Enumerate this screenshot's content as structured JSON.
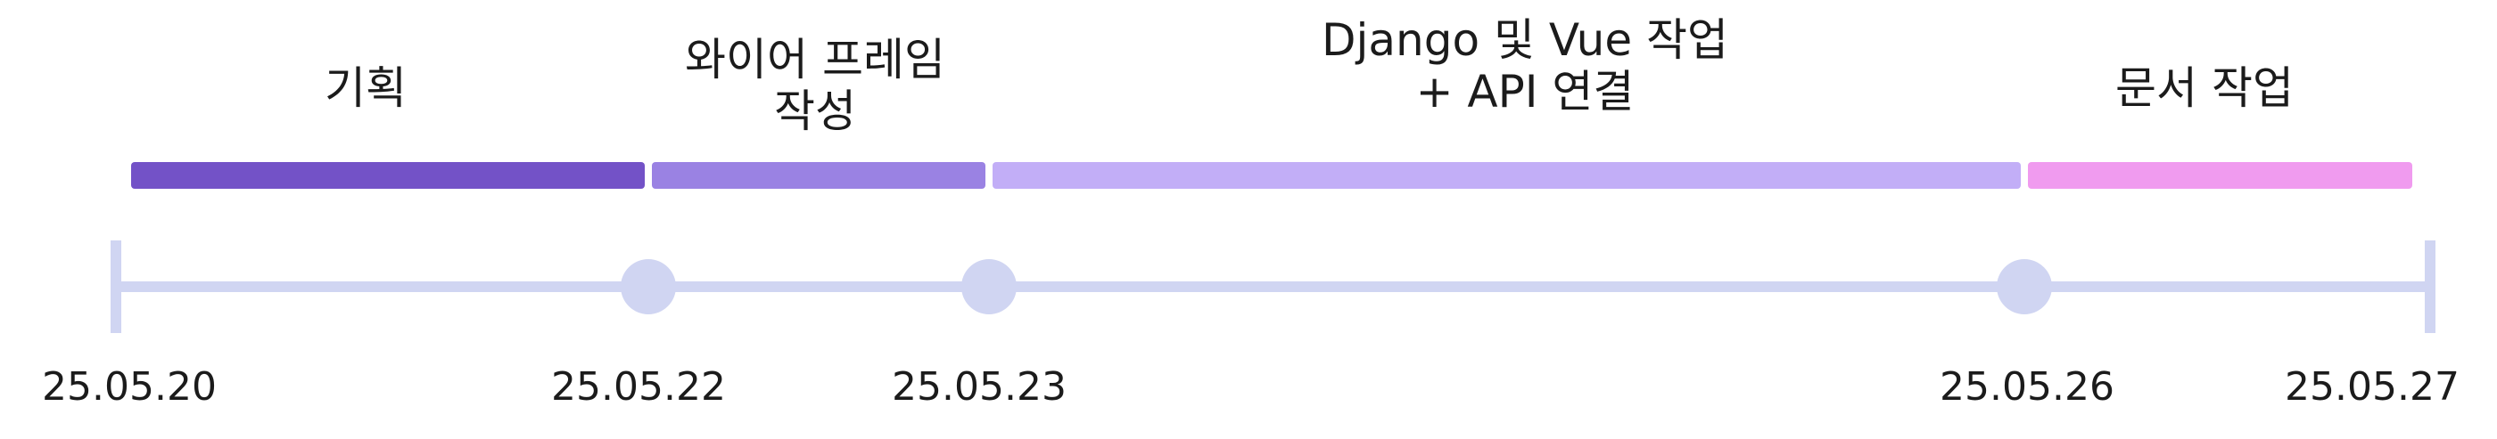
{
  "timeline": {
    "dates": [
      "25.05.20",
      "25.05.22",
      "25.05.23",
      "25.05.26",
      "25.05.27"
    ],
    "phases": [
      {
        "label": "기획",
        "start_index": 0,
        "end_index": 1,
        "color": "#7352c7"
      },
      {
        "label": "와이어 프레임\n작성",
        "start_index": 1,
        "end_index": 2,
        "color": "#9a82e3"
      },
      {
        "label": "Django 및 Vue 작업\n+ API 연결",
        "start_index": 2,
        "end_index": 3,
        "color": "#c2aef7"
      },
      {
        "label": "문서 작업",
        "start_index": 3,
        "end_index": 4,
        "color": "#f09bef"
      }
    ],
    "axis_color": "#d0d5f2",
    "node_color": "#d0d5f2"
  }
}
